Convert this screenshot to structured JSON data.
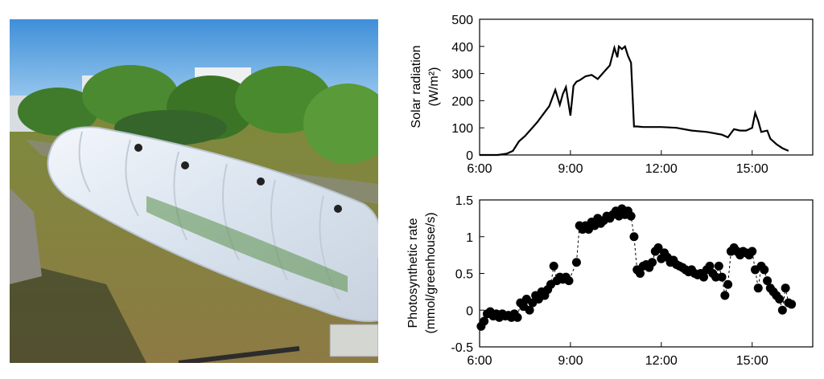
{
  "chart_data": [
    {
      "type": "line",
      "ylabel_lines": [
        "Solar radiation",
        "(W/m²)"
      ],
      "x_ticks": [
        "6:00",
        "9:00",
        "12:00",
        "15:00"
      ],
      "y_ticks": [
        "0",
        "100",
        "200",
        "300",
        "400",
        "500"
      ],
      "xlim": [
        6,
        17
      ],
      "ylim": [
        0,
        500
      ],
      "grid": false,
      "series": [
        {
          "x": [
            6.0,
            6.6,
            6.9,
            7.1,
            7.3,
            7.5,
            7.7,
            7.9,
            8.1,
            8.3,
            8.5,
            8.65,
            8.75,
            8.85,
            9.0,
            9.1,
            9.2,
            9.3,
            9.5,
            9.7,
            9.9,
            10.1,
            10.3,
            10.45,
            10.55,
            10.6,
            10.7,
            10.8,
            10.9,
            11.0,
            11.1,
            11.2,
            11.4,
            12.0,
            12.5,
            13.0,
            13.5,
            14.0,
            14.2,
            14.4,
            14.6,
            14.8,
            15.0,
            15.1,
            15.2,
            15.3,
            15.5,
            15.6,
            15.8,
            16.0,
            16.2
          ],
          "y": [
            0,
            0,
            5,
            15,
            50,
            70,
            95,
            120,
            150,
            180,
            240,
            185,
            225,
            250,
            145,
            255,
            270,
            275,
            290,
            295,
            280,
            305,
            330,
            395,
            360,
            400,
            390,
            400,
            365,
            340,
            105,
            105,
            103,
            103,
            100,
            90,
            85,
            75,
            65,
            95,
            90,
            90,
            100,
            155,
            125,
            85,
            90,
            60,
            40,
            25,
            15
          ]
        }
      ]
    },
    {
      "type": "scatter",
      "ylabel_lines": [
        "Photosynthetic rate",
        "(mmol/greenhouse/s)"
      ],
      "x_ticks": [
        "6:00",
        "9:00",
        "12:00",
        "15:00"
      ],
      "y_ticks": [
        "-0.5",
        "0",
        "0.5",
        "1",
        "1.5"
      ],
      "xlim": [
        6,
        17
      ],
      "ylim": [
        -0.5,
        1.5
      ],
      "grid": false,
      "line_style": "dashed",
      "series": [
        {
          "x": [
            6.05,
            6.15,
            6.25,
            6.35,
            6.45,
            6.55,
            6.65,
            6.75,
            6.85,
            6.95,
            7.05,
            7.15,
            7.25,
            7.35,
            7.45,
            7.55,
            7.65,
            7.75,
            7.85,
            7.95,
            8.05,
            8.15,
            8.25,
            8.35,
            8.45,
            8.55,
            8.65,
            8.75,
            8.85,
            8.95,
            9.2,
            9.3,
            9.4,
            9.5,
            9.6,
            9.7,
            9.8,
            9.9,
            10.0,
            10.1,
            10.2,
            10.3,
            10.4,
            10.5,
            10.6,
            10.7,
            10.8,
            10.9,
            11.0,
            11.1,
            11.2,
            11.3,
            11.4,
            11.5,
            11.6,
            11.7,
            11.8,
            11.9,
            12.0,
            12.1,
            12.2,
            12.3,
            12.4,
            12.5,
            12.6,
            12.7,
            12.8,
            12.9,
            13.0,
            13.1,
            13.2,
            13.3,
            13.4,
            13.5,
            13.6,
            13.7,
            13.8,
            13.9,
            14.0,
            14.1,
            14.2,
            14.3,
            14.4,
            14.5,
            14.6,
            14.7,
            14.8,
            14.9,
            15.0,
            15.1,
            15.2,
            15.3,
            15.4,
            15.5,
            15.6,
            15.7,
            15.8,
            15.9,
            16.0,
            16.1,
            16.2,
            16.3
          ],
          "y": [
            -0.22,
            -0.15,
            -0.05,
            -0.02,
            -0.08,
            -0.05,
            -0.1,
            -0.05,
            -0.08,
            -0.07,
            -0.1,
            -0.05,
            -0.1,
            0.1,
            0.05,
            0.15,
            0.0,
            0.1,
            0.2,
            0.15,
            0.25,
            0.2,
            0.28,
            0.35,
            0.6,
            0.4,
            0.45,
            0.42,
            0.45,
            0.4,
            0.65,
            1.15,
            1.1,
            1.15,
            1.1,
            1.2,
            1.15,
            1.25,
            1.18,
            1.22,
            1.28,
            1.25,
            1.3,
            1.35,
            1.28,
            1.38,
            1.3,
            1.35,
            1.28,
            1.0,
            0.55,
            0.5,
            0.6,
            0.62,
            0.58,
            0.65,
            0.8,
            0.85,
            0.7,
            0.78,
            0.72,
            0.65,
            0.68,
            0.62,
            0.6,
            0.58,
            0.55,
            0.52,
            0.55,
            0.5,
            0.48,
            0.5,
            0.45,
            0.55,
            0.6,
            0.5,
            0.45,
            0.6,
            0.45,
            0.2,
            0.35,
            0.8,
            0.85,
            0.8,
            0.75,
            0.8,
            0.78,
            0.75,
            0.8,
            0.55,
            0.3,
            0.6,
            0.55,
            0.4,
            0.3,
            0.25,
            0.2,
            0.15,
            0.0,
            0.3,
            0.1,
            0.08
          ]
        }
      ]
    }
  ]
}
